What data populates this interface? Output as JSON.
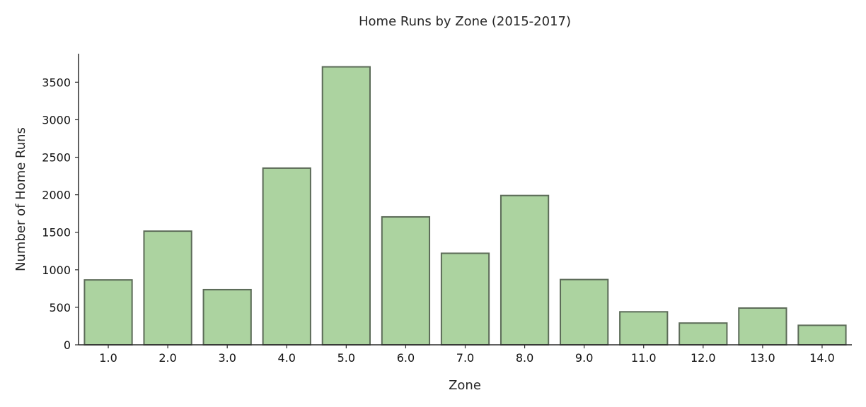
{
  "chart_data": {
    "type": "bar",
    "title": "Home Runs by Zone (2015-2017)",
    "xlabel": "Zone",
    "ylabel": "Number of Home Runs",
    "categories": [
      "1.0",
      "2.0",
      "3.0",
      "4.0",
      "5.0",
      "6.0",
      "7.0",
      "8.0",
      "9.0",
      "11.0",
      "12.0",
      "13.0",
      "14.0"
    ],
    "values": [
      865,
      1515,
      735,
      2355,
      3705,
      1705,
      1220,
      1990,
      870,
      440,
      290,
      490,
      260
    ],
    "ylim": [
      0,
      3880
    ],
    "yticks": [
      0,
      500,
      1000,
      1500,
      2000,
      2500,
      3000,
      3500
    ],
    "grid": false,
    "bar_color": "#acd3a0",
    "bar_edge_color": "#5c6b58"
  }
}
